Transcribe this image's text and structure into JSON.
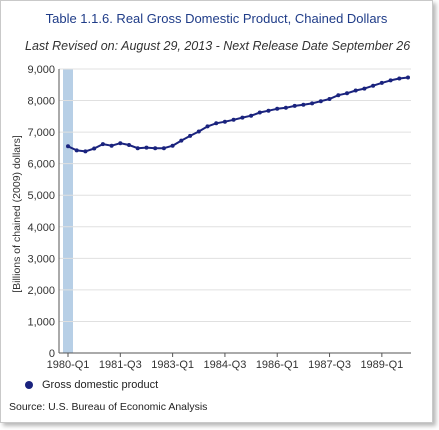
{
  "title": "Table 1.1.6. Real Gross Domestic Product, Chained Dollars",
  "subtitle": "Last Revised on: August 29, 2013 - Next Release Date September 26",
  "source": "Source: U.S. Bureau of Economic Analysis",
  "colors": {
    "series": "#1a237e",
    "title": "#1f3c88",
    "highlight_band": "#b7cfe6",
    "grid": "#e0e0e0"
  },
  "chart_data": {
    "type": "line",
    "title": "Table 1.1.6. Real Gross Domestic Product, Chained Dollars",
    "xlabel": "",
    "ylabel": "[Billions of chained (2009) dollars]",
    "ylim": [
      0,
      9000
    ],
    "y_ticks": [
      "0",
      "1,000",
      "2,000",
      "3,000",
      "4,000",
      "5,000",
      "6,000",
      "7,000",
      "8,000",
      "9,000"
    ],
    "x_tick_labels": [
      "1980-Q1",
      "1981-Q3",
      "1983-Q1",
      "1984-Q3",
      "1986-Q1",
      "1987-Q3",
      "1989-Q1"
    ],
    "x": [
      "1980-Q1",
      "1980-Q2",
      "1980-Q3",
      "1980-Q4",
      "1981-Q1",
      "1981-Q2",
      "1981-Q3",
      "1981-Q4",
      "1982-Q1",
      "1982-Q2",
      "1982-Q3",
      "1982-Q4",
      "1983-Q1",
      "1983-Q2",
      "1983-Q3",
      "1983-Q4",
      "1984-Q1",
      "1984-Q2",
      "1984-Q3",
      "1984-Q4",
      "1985-Q1",
      "1985-Q2",
      "1985-Q3",
      "1985-Q4",
      "1986-Q1",
      "1986-Q2",
      "1986-Q3",
      "1986-Q4",
      "1987-Q1",
      "1987-Q2",
      "1987-Q3",
      "1987-Q4",
      "1988-Q1",
      "1988-Q2",
      "1988-Q3",
      "1988-Q4",
      "1989-Q1",
      "1989-Q2",
      "1989-Q3",
      "1989-Q4"
    ],
    "series": [
      {
        "name": "Gross domestic product",
        "values": [
          6550,
          6420,
          6390,
          6480,
          6620,
          6570,
          6650,
          6590,
          6490,
          6510,
          6490,
          6490,
          6570,
          6730,
          6880,
          7020,
          7180,
          7280,
          7330,
          7390,
          7460,
          7520,
          7620,
          7680,
          7740,
          7770,
          7830,
          7870,
          7910,
          7980,
          8050,
          8170,
          8230,
          8320,
          8380,
          8470,
          8560,
          8640,
          8700,
          8730
        ]
      }
    ],
    "legend": "bottom-left",
    "grid": true,
    "highlight_band_at": "1980-Q1"
  }
}
